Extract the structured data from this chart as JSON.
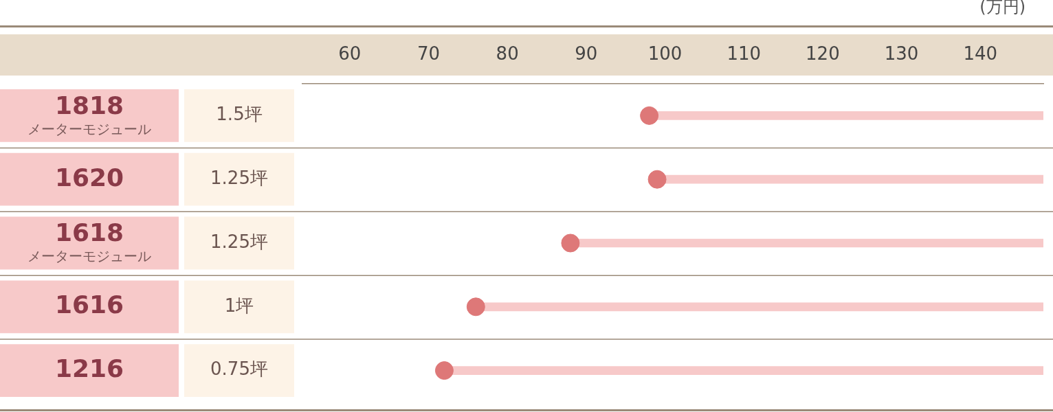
{
  "chart_data": {
    "type": "bar",
    "orientation": "horizontal",
    "xlabel": "(万円)",
    "categories": [
      "1818\nメーターモジュール",
      "1620",
      "1618\nメーターモジュール",
      "1616",
      "1216"
    ],
    "series": [
      {
        "type": "bar",
        "color": "#f7c9c9",
        "base": [
          98,
          99,
          88,
          76,
          72
        ],
        "values": [
          50,
          49,
          60,
          72,
          76
        ]
      },
      {
        "type": "scatter",
        "color": "#de7878",
        "values": [
          98,
          99,
          88,
          76,
          72
        ]
      }
    ],
    "annotations": [
      "1.5坪",
      "1.25坪",
      "1.25坪",
      "1坪",
      "0.75坪"
    ],
    "xlim": [
      54,
      148
    ],
    "xticks": [
      60,
      70,
      80,
      90,
      100,
      110,
      120,
      130,
      140
    ],
    "grid": "y",
    "marker": "circle",
    "legend": false
  }
}
